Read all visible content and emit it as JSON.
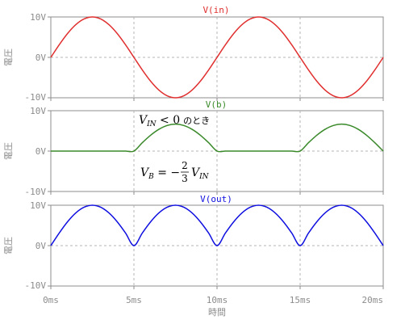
{
  "chart_data": [
    {
      "type": "line",
      "series": [
        {
          "name": "V(in)",
          "color": "#e03030",
          "x": [
            0,
            0.5,
            1,
            1.5,
            2,
            2.5,
            3,
            3.5,
            4,
            4.5,
            5,
            5.5,
            6,
            6.5,
            7,
            7.5,
            8,
            8.5,
            9,
            9.5,
            10,
            10.5,
            11,
            11.5,
            12,
            12.5,
            13,
            13.5,
            14,
            14.5,
            15,
            15.5,
            16,
            16.5,
            17,
            17.5,
            18,
            18.5,
            19,
            19.5,
            20
          ],
          "y": [
            0,
            3.09,
            5.88,
            8.09,
            9.51,
            10,
            9.51,
            8.09,
            5.88,
            3.09,
            0,
            -3.09,
            -5.88,
            -8.09,
            -9.51,
            -10,
            -9.51,
            -8.09,
            -5.88,
            -3.09,
            0,
            3.09,
            5.88,
            8.09,
            9.51,
            10,
            9.51,
            8.09,
            5.88,
            3.09,
            0,
            -3.09,
            -5.88,
            -8.09,
            -9.51,
            -10,
            -9.51,
            -8.09,
            -5.88,
            -3.09,
            0
          ]
        }
      ],
      "ylabel": "電圧",
      "yticks": [
        "10V",
        "0V",
        "-10V"
      ],
      "ylim": [
        -10,
        10
      ],
      "xlim": [
        0,
        20
      ]
    },
    {
      "type": "line",
      "series": [
        {
          "name": "V(b)",
          "color": "#3a8a2a",
          "x": [
            0,
            0.5,
            1,
            1.5,
            2,
            2.5,
            3,
            3.5,
            4,
            4.5,
            5,
            5.5,
            6,
            6.5,
            7,
            7.5,
            8,
            8.5,
            9,
            9.5,
            10,
            10.5,
            11,
            11.5,
            12,
            12.5,
            13,
            13.5,
            14,
            14.5,
            15,
            15.5,
            16,
            16.5,
            17,
            17.5,
            18,
            18.5,
            19,
            19.5,
            20
          ],
          "y": [
            0,
            0,
            0,
            0,
            0,
            0,
            0,
            0,
            0,
            0,
            0,
            2.06,
            3.92,
            5.39,
            6.34,
            6.67,
            6.34,
            5.39,
            3.92,
            2.06,
            0,
            0,
            0,
            0,
            0,
            0,
            0,
            0,
            0,
            0,
            0,
            2.06,
            3.92,
            5.39,
            6.34,
            6.67,
            6.34,
            5.39,
            3.92,
            2.06,
            0
          ]
        }
      ],
      "ylabel": "電圧",
      "yticks": [
        "10V",
        "0V",
        "-10V"
      ],
      "ylim": [
        -10,
        10
      ],
      "xlim": [
        0,
        20
      ],
      "annotations": {
        "cond_lhs": "V",
        "cond_sub": "IN",
        "cond_rhs": " < 0",
        "cond_text": "のとき",
        "eq_lhs": "V",
        "eq_lhs_sub": "B",
        "eq_mid": " = −",
        "eq_num": "2",
        "eq_den": "3",
        "eq_rhs": "V",
        "eq_rhs_sub": "IN"
      }
    },
    {
      "type": "line",
      "series": [
        {
          "name": "V(out)",
          "color": "#1010e0",
          "x": [
            0,
            0.5,
            1,
            1.5,
            2,
            2.5,
            3,
            3.5,
            4,
            4.5,
            5,
            5.5,
            6,
            6.5,
            7,
            7.5,
            8,
            8.5,
            9,
            9.5,
            10,
            10.5,
            11,
            11.5,
            12,
            12.5,
            13,
            13.5,
            14,
            14.5,
            15,
            15.5,
            16,
            16.5,
            17,
            17.5,
            18,
            18.5,
            19,
            19.5,
            20
          ],
          "y": [
            0,
            3.09,
            5.88,
            8.09,
            9.51,
            10,
            9.51,
            8.09,
            5.88,
            3.09,
            0,
            3.09,
            5.88,
            8.09,
            9.51,
            10,
            9.51,
            8.09,
            5.88,
            3.09,
            0,
            3.09,
            5.88,
            8.09,
            9.51,
            10,
            9.51,
            8.09,
            5.88,
            3.09,
            0,
            3.09,
            5.88,
            8.09,
            9.51,
            10,
            9.51,
            8.09,
            5.88,
            3.09,
            0
          ]
        }
      ],
      "ylabel": "電圧",
      "yticks": [
        "10V",
        "0V",
        "-10V"
      ],
      "ylim": [
        -10,
        10
      ],
      "xlim": [
        0,
        20
      ],
      "xticks": [
        "0ms",
        "5ms",
        "10ms",
        "15ms",
        "20ms"
      ],
      "xlabel": "時間"
    }
  ]
}
